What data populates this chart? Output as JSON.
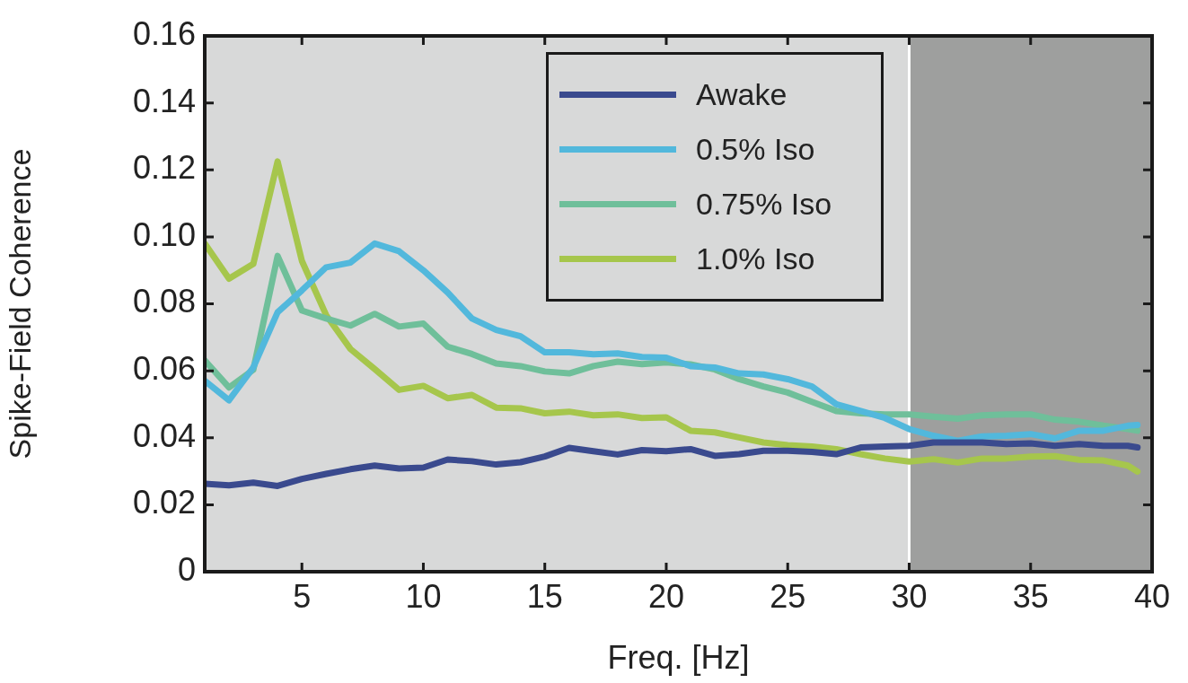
{
  "chart_data": {
    "type": "line",
    "xlabel": "Freq. [Hz]",
    "ylabel": "Spike-Field Coherence",
    "x": [
      1,
      2,
      3,
      4,
      5,
      6,
      7,
      8,
      9,
      10,
      11,
      12,
      13,
      14,
      15,
      16,
      17,
      18,
      19,
      20,
      21,
      22,
      23,
      24,
      25,
      26,
      27,
      28,
      29,
      30,
      31,
      32,
      33,
      34,
      35,
      36,
      37,
      38,
      39,
      39.4
    ],
    "series": [
      {
        "name": "Awake",
        "color": "#3a4a8e",
        "values": [
          0.0263,
          0.0258,
          0.0266,
          0.0256,
          0.0277,
          0.0292,
          0.0306,
          0.0317,
          0.0308,
          0.0311,
          0.0335,
          0.033,
          0.032,
          0.0327,
          0.0344,
          0.037,
          0.036,
          0.035,
          0.0363,
          0.036,
          0.0366,
          0.0346,
          0.0351,
          0.0361,
          0.0361,
          0.0358,
          0.0351,
          0.0371,
          0.0374,
          0.0376,
          0.0386,
          0.0386,
          0.0386,
          0.0381,
          0.0383,
          0.0376,
          0.0381,
          0.0376,
          0.0376,
          0.0371
        ]
      },
      {
        "name": "0.5% Iso",
        "color": "#52b8dc",
        "values": [
          0.057,
          0.0512,
          0.061,
          0.0775,
          0.084,
          0.0909,
          0.0923,
          0.098,
          0.0957,
          0.09,
          0.0834,
          0.0756,
          0.0722,
          0.0703,
          0.0655,
          0.0655,
          0.0649,
          0.0652,
          0.0641,
          0.0639,
          0.0614,
          0.061,
          0.0592,
          0.0589,
          0.0575,
          0.0553,
          0.05,
          0.048,
          0.0459,
          0.0426,
          0.0406,
          0.0391,
          0.0404,
          0.0406,
          0.0411,
          0.0398,
          0.0421,
          0.0421,
          0.0436,
          0.0438
        ]
      },
      {
        "name": "0.75% Iso",
        "color": "#6fbf9a",
        "values": [
          0.0631,
          0.055,
          0.0603,
          0.0943,
          0.078,
          0.0756,
          0.0735,
          0.077,
          0.0732,
          0.0741,
          0.0672,
          0.065,
          0.0622,
          0.0614,
          0.0598,
          0.0592,
          0.0614,
          0.0627,
          0.062,
          0.0625,
          0.0619,
          0.0604,
          0.0575,
          0.0553,
          0.0535,
          0.0507,
          0.048,
          0.0473,
          0.047,
          0.047,
          0.0463,
          0.0457,
          0.0467,
          0.047,
          0.047,
          0.0454,
          0.0448,
          0.0436,
          0.0426,
          0.0421
        ]
      },
      {
        "name": "1.0% Iso",
        "color": "#a6c64c",
        "values": [
          0.098,
          0.0875,
          0.0919,
          0.1225,
          0.0928,
          0.0766,
          0.0665,
          0.0605,
          0.0543,
          0.0555,
          0.0518,
          0.0528,
          0.049,
          0.0488,
          0.0473,
          0.0478,
          0.0467,
          0.047,
          0.0459,
          0.0461,
          0.0421,
          0.0416,
          0.0401,
          0.0386,
          0.0378,
          0.0374,
          0.0366,
          0.0351,
          0.0338,
          0.0329,
          0.0336,
          0.0326,
          0.0338,
          0.0338,
          0.0344,
          0.0345,
          0.0334,
          0.0332,
          0.0317,
          0.0299
        ]
      }
    ],
    "xlim": [
      1,
      40
    ],
    "xticks": [
      5,
      10,
      15,
      20,
      25,
      30,
      35,
      40
    ],
    "ylim": [
      0,
      0.16
    ],
    "yticks": [
      0,
      0.02,
      0.04,
      0.06,
      0.08,
      {
        "value": 0.1,
        "label": "0.10"
      },
      0.12,
      0.14,
      0.16
    ],
    "bands": [
      {
        "axis": "x",
        "from": 30,
        "to": 40,
        "color": "#9e9f9e"
      }
    ],
    "ref_lines": [
      {
        "axis": "x",
        "value": 30,
        "color": "#ffffff"
      }
    ],
    "legend": "top right",
    "marker": "none",
    "line_style": "solid"
  }
}
